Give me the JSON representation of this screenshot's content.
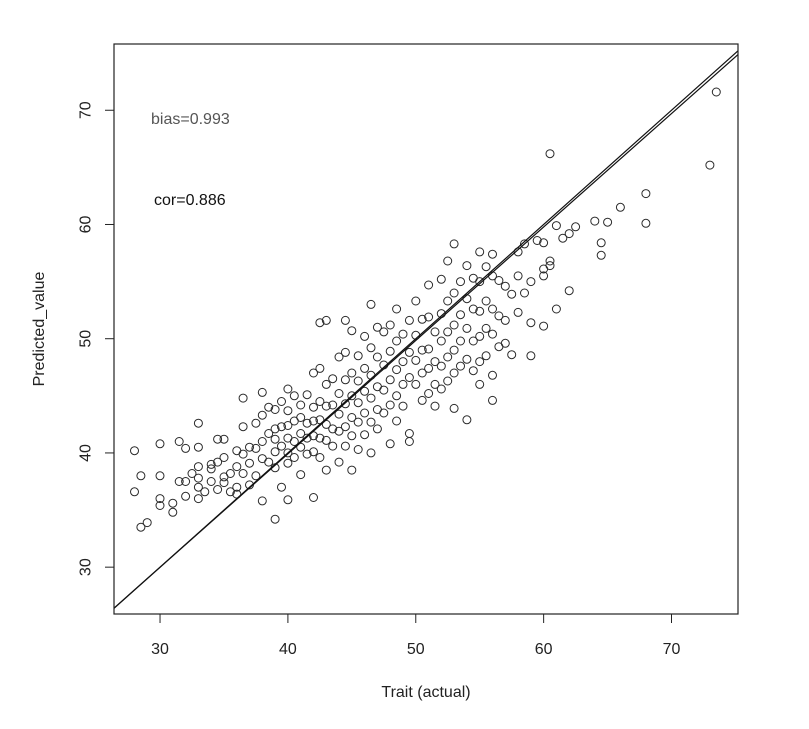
{
  "chart_data": {
    "type": "scatter",
    "xlabel": "Trait (actual)",
    "ylabel": "Predicted_value",
    "xlim": [
      26.4,
      75.2
    ],
    "ylim": [
      25.9,
      75.8
    ],
    "x_ticks": [
      30,
      40,
      50,
      60,
      70
    ],
    "y_ticks": [
      30,
      40,
      50,
      60,
      70
    ],
    "grid": false,
    "annotations": {
      "bias": "bias=0.993",
      "cor": "cor=0.886"
    },
    "lines": [
      {
        "name": "identity",
        "slope": 1.0,
        "intercept": 0.0
      },
      {
        "name": "regression",
        "slope": 0.993,
        "intercept": 0.2
      }
    ],
    "series": [
      {
        "marker": "open-circle",
        "points": [
          [
            28.0,
            40.2
          ],
          [
            28.0,
            36.6
          ],
          [
            28.5,
            38.0
          ],
          [
            28.5,
            33.5
          ],
          [
            29.0,
            33.9
          ],
          [
            30.0,
            40.8
          ],
          [
            30.0,
            38.0
          ],
          [
            30.0,
            36.0
          ],
          [
            30.0,
            35.4
          ],
          [
            31.0,
            35.6
          ],
          [
            31.0,
            34.8
          ],
          [
            31.5,
            41.0
          ],
          [
            31.5,
            37.5
          ],
          [
            32.0,
            37.5
          ],
          [
            32.0,
            36.2
          ],
          [
            32.0,
            40.4
          ],
          [
            32.5,
            38.2
          ],
          [
            33.0,
            42.6
          ],
          [
            33.0,
            40.5
          ],
          [
            33.0,
            38.8
          ],
          [
            33.0,
            37.8
          ],
          [
            33.0,
            37.0
          ],
          [
            33.0,
            36.0
          ],
          [
            33.5,
            36.6
          ],
          [
            34.0,
            39.0
          ],
          [
            34.0,
            37.5
          ],
          [
            34.0,
            38.6
          ],
          [
            34.5,
            41.2
          ],
          [
            34.5,
            39.2
          ],
          [
            34.5,
            36.8
          ],
          [
            35.0,
            41.2
          ],
          [
            35.0,
            39.6
          ],
          [
            35.0,
            37.4
          ],
          [
            35.0,
            37.9
          ],
          [
            35.5,
            38.2
          ],
          [
            35.5,
            36.6
          ],
          [
            36.0,
            40.2
          ],
          [
            36.0,
            38.8
          ],
          [
            36.0,
            37.0
          ],
          [
            36.0,
            36.4
          ],
          [
            36.5,
            44.8
          ],
          [
            36.5,
            42.3
          ],
          [
            36.5,
            39.9
          ],
          [
            36.5,
            38.2
          ],
          [
            37.0,
            40.5
          ],
          [
            37.0,
            39.1
          ],
          [
            37.0,
            37.2
          ],
          [
            37.5,
            42.6
          ],
          [
            37.5,
            40.4
          ],
          [
            37.5,
            38.0
          ],
          [
            38.0,
            45.3
          ],
          [
            38.0,
            43.3
          ],
          [
            38.0,
            41.0
          ],
          [
            38.0,
            39.5
          ],
          [
            38.0,
            35.8
          ],
          [
            38.5,
            44.0
          ],
          [
            38.5,
            41.7
          ],
          [
            38.5,
            39.2
          ],
          [
            39.0,
            43.8
          ],
          [
            39.0,
            42.1
          ],
          [
            39.0,
            41.2
          ],
          [
            39.0,
            40.1
          ],
          [
            39.0,
            38.7
          ],
          [
            39.0,
            34.2
          ],
          [
            39.5,
            44.5
          ],
          [
            39.5,
            42.3
          ],
          [
            39.5,
            40.6
          ],
          [
            39.5,
            37.0
          ],
          [
            40.0,
            45.6
          ],
          [
            40.0,
            43.7
          ],
          [
            40.0,
            42.4
          ],
          [
            40.0,
            41.3
          ],
          [
            40.0,
            40.0
          ],
          [
            40.0,
            39.1
          ],
          [
            40.0,
            35.9
          ],
          [
            40.5,
            45.0
          ],
          [
            40.5,
            42.8
          ],
          [
            40.5,
            41.0
          ],
          [
            40.5,
            39.6
          ],
          [
            41.0,
            44.2
          ],
          [
            41.0,
            43.1
          ],
          [
            41.0,
            41.7
          ],
          [
            41.0,
            40.5
          ],
          [
            41.0,
            38.1
          ],
          [
            41.5,
            45.1
          ],
          [
            41.5,
            42.6
          ],
          [
            41.5,
            41.3
          ],
          [
            41.5,
            39.9
          ],
          [
            42.0,
            47.0
          ],
          [
            42.0,
            44.0
          ],
          [
            42.0,
            42.8
          ],
          [
            42.0,
            41.5
          ],
          [
            42.0,
            40.1
          ],
          [
            42.0,
            36.1
          ],
          [
            42.5,
            51.4
          ],
          [
            42.5,
            47.4
          ],
          [
            42.5,
            44.5
          ],
          [
            42.5,
            42.9
          ],
          [
            42.5,
            41.3
          ],
          [
            42.5,
            39.6
          ],
          [
            43.0,
            51.6
          ],
          [
            43.0,
            46.0
          ],
          [
            43.0,
            44.1
          ],
          [
            43.0,
            42.5
          ],
          [
            43.0,
            41.1
          ],
          [
            43.0,
            38.5
          ],
          [
            43.5,
            46.5
          ],
          [
            43.5,
            44.2
          ],
          [
            43.5,
            42.1
          ],
          [
            43.5,
            40.6
          ],
          [
            44.0,
            48.4
          ],
          [
            44.0,
            45.2
          ],
          [
            44.0,
            43.4
          ],
          [
            44.0,
            41.9
          ],
          [
            44.0,
            39.2
          ],
          [
            44.5,
            51.6
          ],
          [
            44.5,
            48.8
          ],
          [
            44.5,
            46.4
          ],
          [
            44.5,
            44.3
          ],
          [
            44.5,
            42.3
          ],
          [
            44.5,
            40.6
          ],
          [
            45.0,
            50.7
          ],
          [
            45.0,
            47.0
          ],
          [
            45.0,
            45.0
          ],
          [
            45.0,
            43.1
          ],
          [
            45.0,
            41.5
          ],
          [
            45.0,
            38.5
          ],
          [
            45.5,
            48.5
          ],
          [
            45.5,
            46.3
          ],
          [
            45.5,
            44.4
          ],
          [
            45.5,
            42.7
          ],
          [
            45.5,
            40.3
          ],
          [
            46.0,
            50.2
          ],
          [
            46.0,
            47.4
          ],
          [
            46.0,
            45.4
          ],
          [
            46.0,
            43.5
          ],
          [
            46.0,
            41.6
          ],
          [
            46.5,
            53.0
          ],
          [
            46.5,
            49.2
          ],
          [
            46.5,
            46.8
          ],
          [
            46.5,
            44.8
          ],
          [
            46.5,
            42.7
          ],
          [
            46.5,
            40.0
          ],
          [
            47.0,
            51.0
          ],
          [
            47.0,
            48.4
          ],
          [
            47.0,
            45.8
          ],
          [
            47.0,
            43.8
          ],
          [
            47.0,
            42.1
          ],
          [
            47.5,
            50.6
          ],
          [
            47.5,
            47.7
          ],
          [
            47.5,
            45.5
          ],
          [
            47.5,
            43.5
          ],
          [
            48.0,
            51.2
          ],
          [
            48.0,
            48.9
          ],
          [
            48.0,
            46.4
          ],
          [
            48.0,
            44.2
          ],
          [
            48.0,
            40.8
          ],
          [
            48.5,
            52.6
          ],
          [
            48.5,
            49.8
          ],
          [
            48.5,
            47.3
          ],
          [
            48.5,
            45.0
          ],
          [
            48.5,
            42.8
          ],
          [
            49.0,
            50.4
          ],
          [
            49.0,
            48.0
          ],
          [
            49.0,
            46.0
          ],
          [
            49.0,
            44.1
          ],
          [
            49.5,
            51.6
          ],
          [
            49.5,
            48.8
          ],
          [
            49.5,
            46.6
          ],
          [
            49.5,
            41.0
          ],
          [
            49.5,
            41.7
          ],
          [
            50.0,
            53.3
          ],
          [
            50.0,
            50.3
          ],
          [
            50.0,
            48.1
          ],
          [
            50.0,
            46.0
          ],
          [
            50.5,
            51.7
          ],
          [
            50.5,
            49.0
          ],
          [
            50.5,
            47.0
          ],
          [
            50.5,
            44.6
          ],
          [
            51.0,
            54.7
          ],
          [
            51.0,
            51.9
          ],
          [
            51.0,
            49.1
          ],
          [
            51.0,
            47.4
          ],
          [
            51.0,
            45.2
          ],
          [
            51.5,
            50.6
          ],
          [
            51.5,
            48.0
          ],
          [
            51.5,
            46.0
          ],
          [
            51.5,
            44.1
          ],
          [
            52.0,
            55.2
          ],
          [
            52.0,
            52.2
          ],
          [
            52.0,
            49.8
          ],
          [
            52.0,
            47.6
          ],
          [
            52.0,
            45.6
          ],
          [
            52.5,
            56.8
          ],
          [
            52.5,
            53.3
          ],
          [
            52.5,
            50.6
          ],
          [
            52.5,
            48.4
          ],
          [
            52.5,
            46.3
          ],
          [
            53.0,
            58.3
          ],
          [
            53.0,
            54.0
          ],
          [
            53.0,
            51.2
          ],
          [
            53.0,
            49.0
          ],
          [
            53.0,
            47.0
          ],
          [
            53.0,
            43.9
          ],
          [
            53.5,
            55.0
          ],
          [
            53.5,
            52.1
          ],
          [
            53.5,
            49.8
          ],
          [
            53.5,
            47.6
          ],
          [
            54.0,
            56.4
          ],
          [
            54.0,
            53.5
          ],
          [
            54.0,
            50.9
          ],
          [
            54.0,
            48.2
          ],
          [
            54.0,
            42.9
          ],
          [
            54.5,
            55.3
          ],
          [
            54.5,
            52.6
          ],
          [
            54.5,
            49.8
          ],
          [
            54.5,
            47.2
          ],
          [
            55.0,
            57.6
          ],
          [
            55.0,
            55.0
          ],
          [
            55.0,
            52.4
          ],
          [
            55.0,
            50.2
          ],
          [
            55.0,
            48.0
          ],
          [
            55.0,
            46.0
          ],
          [
            55.5,
            56.3
          ],
          [
            55.5,
            53.3
          ],
          [
            55.5,
            50.9
          ],
          [
            55.5,
            48.5
          ],
          [
            56.0,
            57.4
          ],
          [
            56.0,
            55.5
          ],
          [
            56.0,
            52.6
          ],
          [
            56.0,
            50.4
          ],
          [
            56.0,
            46.8
          ],
          [
            56.0,
            44.6
          ],
          [
            56.5,
            55.1
          ],
          [
            56.5,
            52.0
          ],
          [
            56.5,
            49.3
          ],
          [
            57.0,
            54.6
          ],
          [
            57.0,
            51.6
          ],
          [
            57.0,
            49.6
          ],
          [
            57.5,
            53.9
          ],
          [
            57.5,
            48.6
          ],
          [
            58.0,
            57.6
          ],
          [
            58.0,
            55.5
          ],
          [
            58.0,
            52.3
          ],
          [
            58.5,
            58.3
          ],
          [
            58.5,
            54.0
          ],
          [
            59.0,
            55.0
          ],
          [
            59.0,
            51.4
          ],
          [
            59.0,
            48.5
          ],
          [
            59.5,
            58.6
          ],
          [
            60.0,
            58.4
          ],
          [
            60.0,
            56.1
          ],
          [
            60.0,
            55.5
          ],
          [
            60.0,
            51.1
          ],
          [
            60.5,
            66.2
          ],
          [
            60.5,
            56.8
          ],
          [
            60.5,
            56.4
          ],
          [
            61.0,
            59.9
          ],
          [
            61.0,
            52.6
          ],
          [
            61.5,
            58.8
          ],
          [
            62.0,
            59.2
          ],
          [
            62.0,
            54.2
          ],
          [
            62.5,
            59.8
          ],
          [
            64.0,
            60.3
          ],
          [
            64.5,
            58.4
          ],
          [
            64.5,
            57.3
          ],
          [
            65.0,
            60.2
          ],
          [
            66.0,
            61.5
          ],
          [
            68.0,
            62.7
          ],
          [
            68.0,
            60.1
          ],
          [
            73.0,
            65.2
          ],
          [
            73.5,
            71.6
          ]
        ]
      }
    ]
  }
}
